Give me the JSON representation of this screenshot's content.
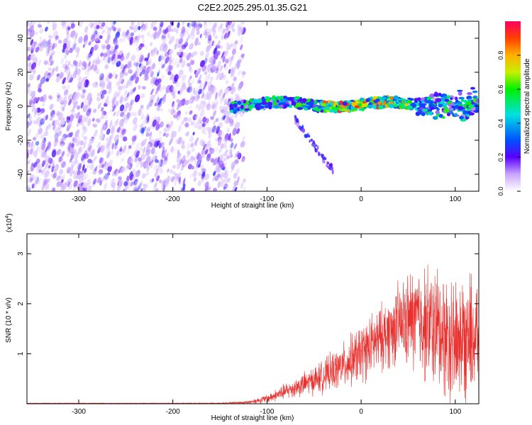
{
  "title": "C2E2.2025.295.01.35.G21",
  "colors": {
    "snr_line": "#e8302e",
    "spectrogram_noise": "#6a1cf0",
    "axis": "#000000"
  },
  "chart_data": [
    {
      "type": "heatmap",
      "name": "spectrogram",
      "xlabel": "Height of straight line (km)",
      "ylabel": "Frequency (Hz)",
      "xlim": [
        -355,
        125
      ],
      "ylim": [
        -50,
        50
      ],
      "xticks": [
        -300,
        -200,
        -100,
        0,
        100
      ],
      "yticks": [
        -40,
        -20,
        0,
        20,
        40
      ],
      "colorbar": {
        "label": "Normalized spectral amplitude",
        "range": [
          0,
          1
        ],
        "ticks": [
          0.0,
          0.2,
          0.4,
          0.6,
          0.8
        ],
        "tick_labels": [
          "0.0",
          "0.2",
          "0.4",
          "0.6",
          "0.8"
        ]
      },
      "features": [
        {
          "name": "noise region",
          "x_range": [
            -355,
            -130
          ],
          "y_range": [
            -50,
            50
          ],
          "amplitude": 0.2
        },
        {
          "name": "signal band",
          "x_range": [
            -138,
            125
          ],
          "center_freq_hz": 1,
          "width_hz": 6,
          "peak_amplitude": 0.95
        },
        {
          "name": "trailing branch",
          "x_range": [
            -70,
            -30
          ],
          "freq_hz": [
            -8,
            -38
          ],
          "amplitude": 0.2
        }
      ]
    },
    {
      "type": "line",
      "name": "snr",
      "xlabel": "Height of straight line (km)",
      "ylabel": "SNR (10 * v/v)",
      "yscale_label": "(x10",
      "yscale_exponent": "4",
      "yscale_suffix": ")",
      "xlim": [
        -355,
        125
      ],
      "ylim": [
        0,
        3.4
      ],
      "xticks": [
        -300,
        -200,
        -100,
        0,
        100
      ],
      "yticks": [
        1,
        2,
        3
      ],
      "series": [
        {
          "name": "SNR",
          "x": [
            -355,
            -250,
            -150,
            -120,
            -100,
            -80,
            -60,
            -40,
            -20,
            0,
            20,
            40,
            60,
            80,
            100,
            120,
            125
          ],
          "y_mean": [
            0.01,
            0.01,
            0.01,
            0.03,
            0.1,
            0.25,
            0.4,
            0.55,
            0.75,
            1.0,
            1.3,
            1.6,
            1.7,
            1.5,
            1.3,
            1.35,
            1.35
          ],
          "y_spread": [
            0.005,
            0.005,
            0.008,
            0.03,
            0.08,
            0.15,
            0.22,
            0.3,
            0.4,
            0.55,
            0.6,
            0.75,
            1.0,
            1.15,
            1.2,
            1.15,
            1.1
          ]
        }
      ]
    }
  ]
}
